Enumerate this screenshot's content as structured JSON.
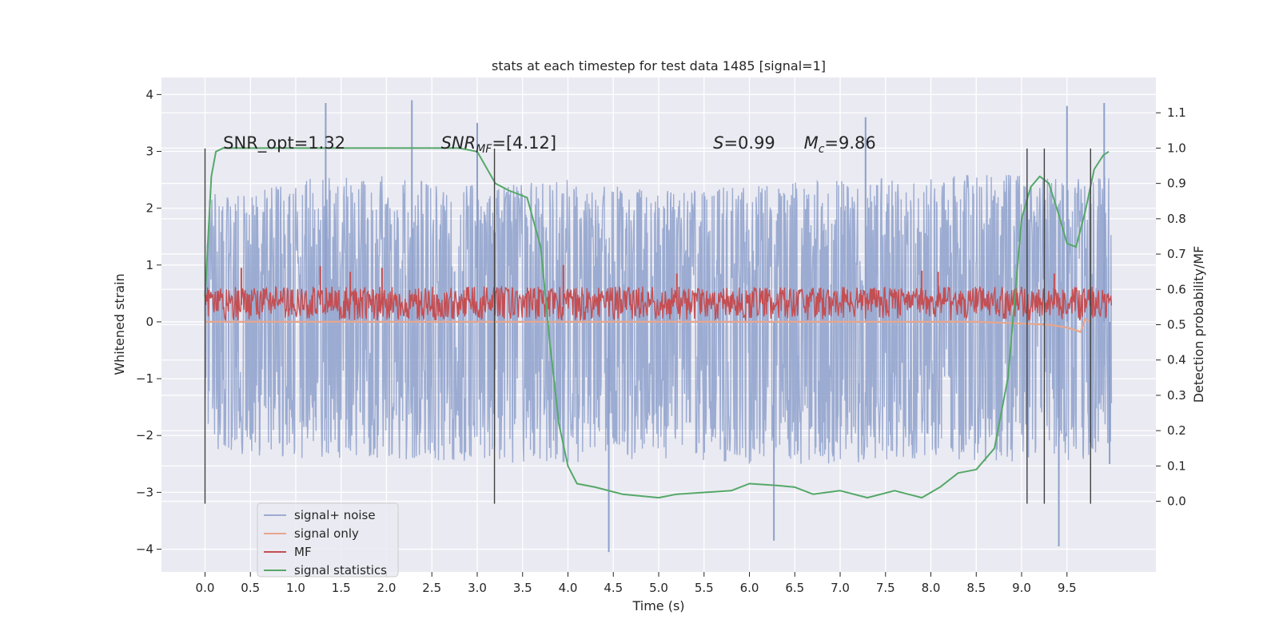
{
  "chart_data": {
    "type": "line",
    "title": "stats at each timestep for test data 1485 [signal=1]",
    "xlabel": "Time (s)",
    "ylabel": "Whitened strain",
    "y2label": "Detection probability/MF",
    "xlim": [
      -0.48,
      10.48
    ],
    "ylim": [
      -4.4,
      4.3
    ],
    "y2lim": [
      -0.2,
      1.2
    ],
    "x_ticks": [
      0.0,
      0.5,
      1.0,
      1.5,
      2.0,
      2.5,
      3.0,
      3.5,
      4.0,
      4.5,
      5.0,
      5.5,
      6.0,
      6.5,
      7.0,
      7.5,
      8.0,
      8.5,
      9.0,
      9.5
    ],
    "x_tick_labels": [
      "0.0",
      "0.5",
      "1.0",
      "1.5",
      "2.0",
      "2.5",
      "3.0",
      "3.5",
      "4.0",
      "4.5",
      "5.0",
      "5.5",
      "6.0",
      "6.5",
      "7.0",
      "7.5",
      "8.0",
      "8.5",
      "9.0",
      "9.5"
    ],
    "y_ticks": [
      -4,
      -3,
      -2,
      -1,
      0,
      1,
      2,
      3,
      4
    ],
    "y_tick_labels": [
      "−4",
      "−3",
      "−2",
      "−1",
      "0",
      "1",
      "2",
      "3",
      "4"
    ],
    "y2_ticks": [
      0.0,
      0.1,
      0.2,
      0.3,
      0.4,
      0.5,
      0.6,
      0.7,
      0.8,
      0.9,
      1.0,
      1.1
    ],
    "y2_tick_labels": [
      "0.0",
      "0.1",
      "0.2",
      "0.3",
      "0.4",
      "0.5",
      "0.6",
      "0.7",
      "0.8",
      "0.9",
      "1.0",
      "1.1"
    ],
    "grid": true,
    "legend_position": "bottom-left",
    "annotations": [
      {
        "x": 0.2,
        "y": 3.05,
        "text": "SNR_opt=1.32"
      },
      {
        "x": 2.6,
        "y": 3.05,
        "text": "SNR_MF=[4.12]"
      },
      {
        "x": 5.6,
        "y": 3.05,
        "text": "S=0.99"
      },
      {
        "x": 6.6,
        "y": 3.05,
        "text": "M_c=9.86"
      }
    ],
    "vlines": [
      0.0,
      3.19,
      9.06,
      9.25,
      9.76
    ],
    "vline_range": [
      -3.2,
      3.05
    ],
    "series": [
      {
        "name": "signal+ noise",
        "color": "#8da0cb",
        "axis": "left",
        "noise_envelope": {
          "x": [
            0.0,
            1.0,
            2.0,
            3.0,
            4.0,
            5.0,
            6.0,
            7.0,
            8.0,
            9.0,
            10.0
          ],
          "high": [
            2.3,
            2.5,
            2.6,
            2.4,
            2.5,
            2.3,
            2.4,
            2.5,
            2.6,
            2.6,
            2.6
          ],
          "low": [
            -2.3,
            -2.4,
            -2.4,
            -2.5,
            -2.5,
            -2.4,
            -2.5,
            -2.5,
            -2.4,
            -2.5,
            -2.4
          ]
        },
        "spike_x": [
          1.33,
          2.28,
          3.0,
          4.45,
          6.27,
          7.28,
          9.41,
          9.5,
          9.91,
          9.97
        ],
        "spike_y": [
          3.85,
          3.9,
          3.5,
          -4.05,
          -3.85,
          3.6,
          -3.95,
          3.8,
          3.85,
          -2.5
        ]
      },
      {
        "name": "signal only",
        "color": "#e8a58c",
        "axis": "left",
        "x": [
          0.0,
          8.5,
          9.0,
          9.3,
          9.5,
          9.6,
          9.65,
          9.7,
          9.75
        ],
        "y": [
          0.0,
          0.0,
          -0.03,
          -0.05,
          -0.1,
          -0.15,
          -0.18,
          0.05,
          0.0
        ]
      },
      {
        "name": "MF",
        "color": "#c44e52",
        "axis": "left",
        "band_low": 0.02,
        "band_high": 0.62,
        "spike_x": [
          0.4,
          1.27,
          1.6,
          1.95,
          3.95,
          5.2,
          7.9,
          8.08,
          9.36
        ],
        "spike_y": [
          0.95,
          0.98,
          0.88,
          0.95,
          1.0,
          0.85,
          0.9,
          0.88,
          0.85
        ]
      },
      {
        "name": "signal statistics",
        "color": "#55a868",
        "axis": "right",
        "x": [
          0.0,
          0.07,
          0.12,
          0.2,
          0.4,
          1.0,
          2.0,
          2.8,
          3.0,
          3.2,
          3.35,
          3.55,
          3.7,
          3.8,
          3.9,
          4.0,
          4.1,
          4.3,
          4.6,
          5.0,
          5.2,
          5.5,
          5.8,
          6.0,
          6.3,
          6.5,
          6.7,
          7.0,
          7.3,
          7.6,
          7.9,
          8.1,
          8.3,
          8.5,
          8.7,
          8.85,
          9.0,
          9.1,
          9.2,
          9.3,
          9.4,
          9.5,
          9.6,
          9.7,
          9.8,
          9.9,
          9.96
        ],
        "y": [
          0.58,
          0.92,
          0.99,
          1.0,
          1.0,
          1.0,
          1.0,
          1.0,
          0.99,
          0.9,
          0.88,
          0.86,
          0.72,
          0.45,
          0.22,
          0.1,
          0.05,
          0.04,
          0.02,
          0.01,
          0.02,
          0.025,
          0.03,
          0.05,
          0.045,
          0.04,
          0.02,
          0.03,
          0.01,
          0.03,
          0.01,
          0.04,
          0.08,
          0.09,
          0.15,
          0.35,
          0.8,
          0.89,
          0.92,
          0.9,
          0.82,
          0.73,
          0.72,
          0.82,
          0.94,
          0.98,
          0.99
        ]
      }
    ]
  }
}
